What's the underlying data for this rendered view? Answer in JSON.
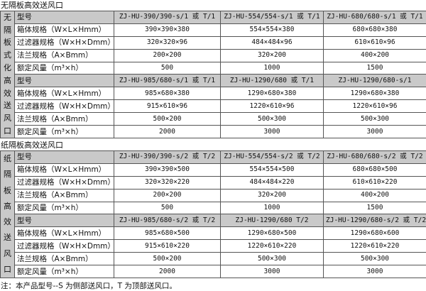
{
  "sections": [
    {
      "title": "无隔板高效送风口",
      "side_label": [
        "无",
        "隔",
        "板",
        "式",
        "化",
        "高",
        "效",
        "送",
        "风",
        "口"
      ],
      "groups": [
        {
          "header": [
            "型号",
            "ZJ-HU-390/390-s/1 或 T/1",
            "ZJ-HU-554/554-s/1 或 T/1",
            "ZJ-HU-680/680-s/1 或 T/1"
          ],
          "rows": [
            [
              "箱体规格（W×L×Hmm）",
              "390×390×380",
              "554×554×380",
              "680×680×380"
            ],
            [
              "过滤器规格（W×H×Dmm）",
              "320×320×96",
              "484×484×96",
              "610×610×96"
            ],
            [
              "法兰规格（A×Bmm）",
              "200×200",
              "320×200",
              "400×200"
            ],
            [
              "额定风量（m³×h）",
              "500",
              "1000",
              "1500"
            ]
          ]
        },
        {
          "header": [
            "型号",
            "ZJ-HU-985/680-s/1 或 T/1",
            "ZJ-HU-1290/680 或 T/1",
            "ZJ-HU-1290/680-s/1"
          ],
          "rows": [
            [
              "箱体规格（W×L×Hmm）",
              "985×680×380",
              "1290×680×380",
              "1290×680×380"
            ],
            [
              "过滤器规格（W×H×Dmm）",
              "915×610×96",
              "1220×610×96",
              "1220×610×96"
            ],
            [
              "法兰规格（A×Bmm）",
              "500×200",
              "500×300",
              "500×300"
            ],
            [
              "额定风量（m³×h）",
              "2000",
              "3000",
              "3000"
            ]
          ]
        }
      ]
    },
    {
      "title": "纸隔板高效送风口",
      "side_label": [
        "纸",
        "隔",
        "板",
        "高",
        "效",
        "送",
        "风",
        "口"
      ],
      "groups": [
        {
          "header": [
            "型号",
            "ZJ-HU-390/390-s/2 或 T/2",
            "ZJ-HU-554/554-s/2 或 T/2",
            "ZJ-HU-680/680-s/2 或 T/2"
          ],
          "rows": [
            [
              "箱体规格（W×L×Hmm）",
              "390×390×500",
              "554×554×500",
              "680×680×500"
            ],
            [
              "过滤器规格（W×H×Dmm）",
              "320×320×220",
              "484×484×220",
              "610×610×220"
            ],
            [
              "法兰规格（A×Bmm）",
              "200×200",
              "320×200",
              "400×200"
            ],
            [
              "额定风量（m³×h）",
              "500",
              "1000",
              "1500"
            ]
          ]
        },
        {
          "header": [
            "型号",
            "ZJ-HU-985/680-s/2 或 T/2",
            "ZJ-HU-1290/680 T/2",
            "ZJ-HU-1290/680-s/2 或 T/2"
          ],
          "rows": [
            [
              "箱体规格（W×L×Hmm）",
              "985×680×500",
              "1290×680×500",
              "1290×680×600"
            ],
            [
              "过滤器规格（W×H×Dmm）",
              "915×610×220",
              "1220×610×220",
              "1220×610×220"
            ],
            [
              "法兰规格（A×Bmm）",
              "500×200",
              "500×300",
              "500×300"
            ],
            [
              "额定风量（m³×h）",
              "2000",
              "3000",
              "3000"
            ]
          ]
        }
      ]
    }
  ],
  "note": "注：本产品型号--S 为侧部送风口，T 为顶部送风口。"
}
